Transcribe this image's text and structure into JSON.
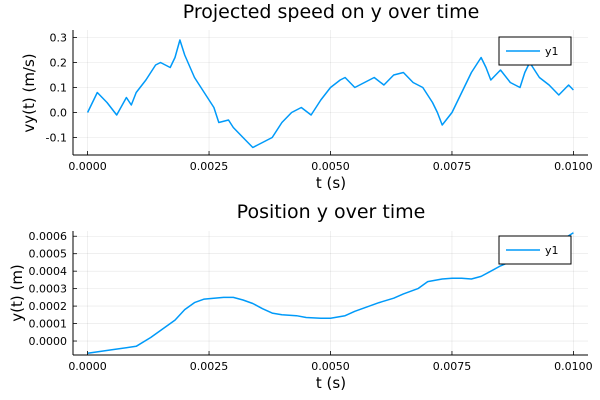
{
  "chart_data": [
    {
      "type": "line",
      "title": "Projected speed on y over time",
      "xlabel": "t (s)",
      "ylabel": "vy(t) (m/s)",
      "xlim": [
        -0.0003,
        0.0103
      ],
      "ylim": [
        -0.17,
        0.33
      ],
      "xticks": [
        0,
        0.0025,
        0.005,
        0.0075,
        0.01
      ],
      "xtick_labels": [
        "0.0000",
        "0.0025",
        "0.0050",
        "0.0075",
        "0.0100"
      ],
      "yticks": [
        -0.1,
        0,
        0.1,
        0.2,
        0.3
      ],
      "ytick_labels": [
        "-0.1",
        "0.0",
        "0.1",
        "0.2",
        "0.3"
      ],
      "grid": true,
      "legend_position": "top-right",
      "color": "#009AF9",
      "series": [
        {
          "name": "y1",
          "x": [
            0,
            0.0002,
            0.0004,
            0.0006,
            0.0008,
            0.0009,
            0.001,
            0.0012,
            0.0014,
            0.0015,
            0.0017,
            0.0018,
            0.0019,
            0.002,
            0.0022,
            0.0024,
            0.0026,
            0.0027,
            0.0029,
            0.003,
            0.0032,
            0.0034,
            0.0035,
            0.0036,
            0.0038,
            0.004,
            0.0042,
            0.0044,
            0.0046,
            0.0048,
            0.005,
            0.0052,
            0.0053,
            0.0055,
            0.0057,
            0.0059,
            0.0061,
            0.0063,
            0.0065,
            0.0067,
            0.0069,
            0.0071,
            0.0072,
            0.0073,
            0.0075,
            0.0077,
            0.0079,
            0.0081,
            0.0082,
            0.0083,
            0.0085,
            0.0087,
            0.0089,
            0.009,
            0.0091,
            0.0093,
            0.0095,
            0.0097,
            0.0099,
            0.01
          ],
          "y": [
            0.0,
            0.08,
            0.04,
            -0.01,
            0.06,
            0.03,
            0.08,
            0.13,
            0.19,
            0.2,
            0.18,
            0.22,
            0.29,
            0.23,
            0.14,
            0.08,
            0.02,
            -0.04,
            -0.03,
            -0.06,
            -0.1,
            -0.14,
            -0.13,
            -0.12,
            -0.1,
            -0.04,
            0.0,
            0.02,
            -0.01,
            0.05,
            0.1,
            0.13,
            0.14,
            0.1,
            0.12,
            0.14,
            0.11,
            0.15,
            0.16,
            0.12,
            0.1,
            0.04,
            0.0,
            -0.05,
            0.0,
            0.08,
            0.16,
            0.22,
            0.18,
            0.13,
            0.17,
            0.12,
            0.1,
            0.16,
            0.2,
            0.14,
            0.11,
            0.07,
            0.11,
            0.09
          ]
        }
      ]
    },
    {
      "type": "line",
      "title": "Position y over time",
      "xlabel": "t (s)",
      "ylabel": "y(t) (m)",
      "xlim": [
        -0.0003,
        0.0103
      ],
      "ylim": [
        -8e-05,
        0.00063
      ],
      "xticks": [
        0,
        0.0025,
        0.005,
        0.0075,
        0.01
      ],
      "xtick_labels": [
        "0.0000",
        "0.0025",
        "0.0050",
        "0.0075",
        "0.0100"
      ],
      "yticks": [
        0,
        0.0001,
        0.0002,
        0.0003,
        0.0004,
        0.0005,
        0.0006
      ],
      "ytick_labels": [
        "0.0000",
        "0.0001",
        "0.0002",
        "0.0003",
        "0.0004",
        "0.0005",
        "0.0006"
      ],
      "grid": true,
      "legend_position": "top-right",
      "color": "#009AF9",
      "series": [
        {
          "name": "y1",
          "x": [
            0,
            0.0005,
            0.001,
            0.0013,
            0.0015,
            0.0018,
            0.002,
            0.0022,
            0.0024,
            0.0026,
            0.0028,
            0.003,
            0.0032,
            0.0034,
            0.0036,
            0.0038,
            0.004,
            0.0043,
            0.0045,
            0.0048,
            0.005,
            0.0053,
            0.0055,
            0.0058,
            0.006,
            0.0063,
            0.0065,
            0.0068,
            0.007,
            0.0073,
            0.0075,
            0.0077,
            0.0079,
            0.0081,
            0.0083,
            0.0085,
            0.0088,
            0.009,
            0.0093,
            0.0095,
            0.0098,
            0.01
          ],
          "y": [
            -7e-05,
            -5e-05,
            -3e-05,
            2e-05,
            6e-05,
            0.00012,
            0.00018,
            0.00022,
            0.00024,
            0.000245,
            0.00025,
            0.00025,
            0.000235,
            0.000215,
            0.000185,
            0.00016,
            0.00015,
            0.000145,
            0.000135,
            0.00013,
            0.00013,
            0.000145,
            0.00017,
            0.0002,
            0.00022,
            0.000245,
            0.00027,
            0.0003,
            0.00034,
            0.000355,
            0.00036,
            0.00036,
            0.000355,
            0.00037,
            0.0004,
            0.00043,
            0.000465,
            0.00049,
            0.000525,
            0.00055,
            0.000585,
            0.00062
          ]
        }
      ]
    }
  ]
}
